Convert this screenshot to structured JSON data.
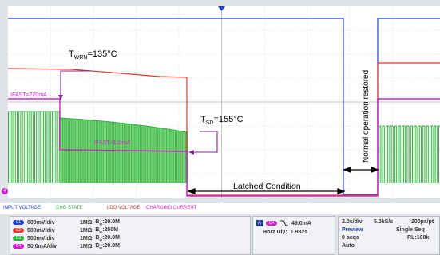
{
  "annotations": {
    "t_wrn": "T",
    "t_wrn_sub": "WRN",
    "t_wrn_val": "=135°C",
    "t_sd": "T",
    "t_sd_sub": "SD",
    "t_sd_val": "=155°C",
    "ifast_220": "IFAST=220mA",
    "ifast_110": "IFAST=110mA",
    "latched": "Latched Condition",
    "normal_restored": "Normal operation restored"
  },
  "markers": {
    "ch4": "4"
  },
  "legend": {
    "input_voltage": "INPUT VOLTAGE",
    "chg_state": "CHG STATE",
    "ldo_voltage": "LDO VOLTAGE",
    "charging_current": "CHARGING CURRENT"
  },
  "channels": [
    {
      "id": "C1",
      "scale": "600mV/div",
      "impedance": "1MΩ",
      "bw": "B",
      "bw_sub": "W",
      "bw_val": ":20.0M",
      "color": "#2040d0"
    },
    {
      "id": "C2",
      "scale": "500mV/div",
      "impedance": "1MΩ",
      "bw": "B",
      "bw_sub": "W",
      "bw_val": ":250M",
      "color": "#e0392b"
    },
    {
      "id": "C3",
      "scale": "500mV/div",
      "impedance": "1MΩ",
      "bw": "B",
      "bw_sub": "W",
      "bw_val": ":20.0M",
      "color": "#2fae3a"
    },
    {
      "id": "C4",
      "scale": "50.0mA/div",
      "impedance": "1MΩ",
      "bw": "B",
      "bw_sub": "W",
      "bw_val": ":20.0M",
      "color": "#d020d0"
    }
  ],
  "trigger": {
    "source_a": "A",
    "source_ch": "C4",
    "level": "49.0mA",
    "horz_dly_label": "Horz Dly:",
    "horz_dly": "1.982s"
  },
  "acquisition": {
    "timebase": "2.0s/div",
    "sample_rate": "5.0kS/s",
    "sample_interval": "200µs/pt",
    "mode": "Preview",
    "seq": "Single Seq",
    "acqs": "0 acqs",
    "rl": "RL:100k",
    "auto": "Auto"
  },
  "colors": {
    "input_voltage": "#2040d0",
    "chg_state": "#2fae3a",
    "ldo_voltage": "#e0392b",
    "charging_current": "#d020d0",
    "annotation": "#7b2c8f"
  }
}
